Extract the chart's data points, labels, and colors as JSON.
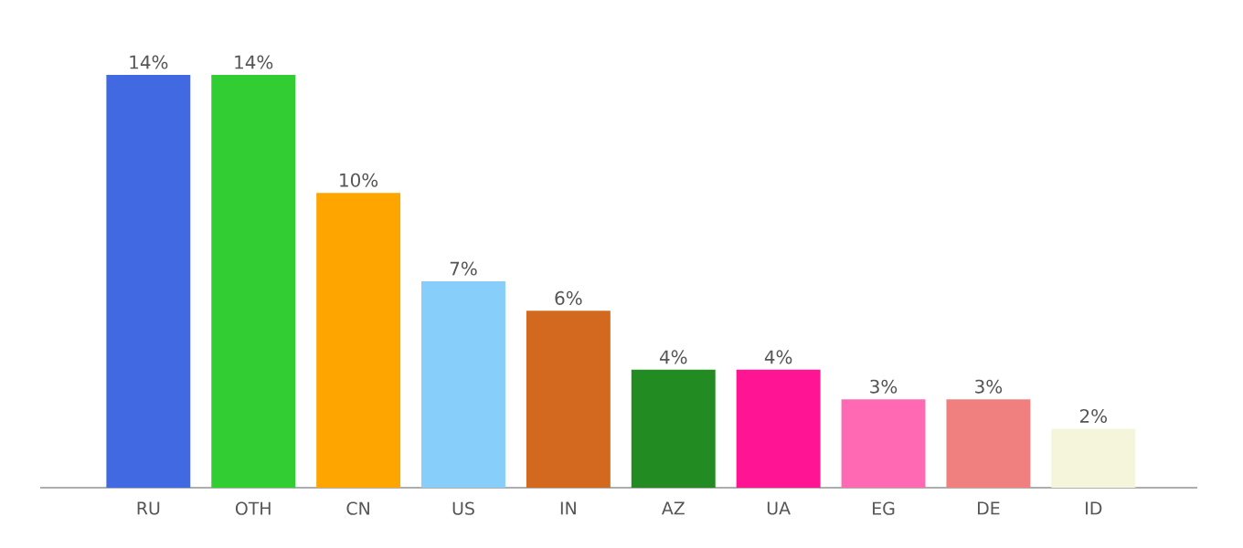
{
  "chart_data": {
    "type": "bar",
    "categories": [
      "RU",
      "OTH",
      "CN",
      "US",
      "IN",
      "AZ",
      "UA",
      "EG",
      "DE",
      "ID"
    ],
    "values": [
      14,
      14,
      10,
      7,
      6,
      4,
      4,
      3,
      3,
      2
    ],
    "value_labels": [
      "14%",
      "14%",
      "10%",
      "7%",
      "6%",
      "4%",
      "4%",
      "3%",
      "3%",
      "2%"
    ],
    "colors": [
      "#4169e1",
      "#32cd32",
      "#ffa500",
      "#87cefa",
      "#d2691e",
      "#228b22",
      "#ff1493",
      "#ff69b4",
      "#f08080",
      "#f5f5dc"
    ]
  }
}
